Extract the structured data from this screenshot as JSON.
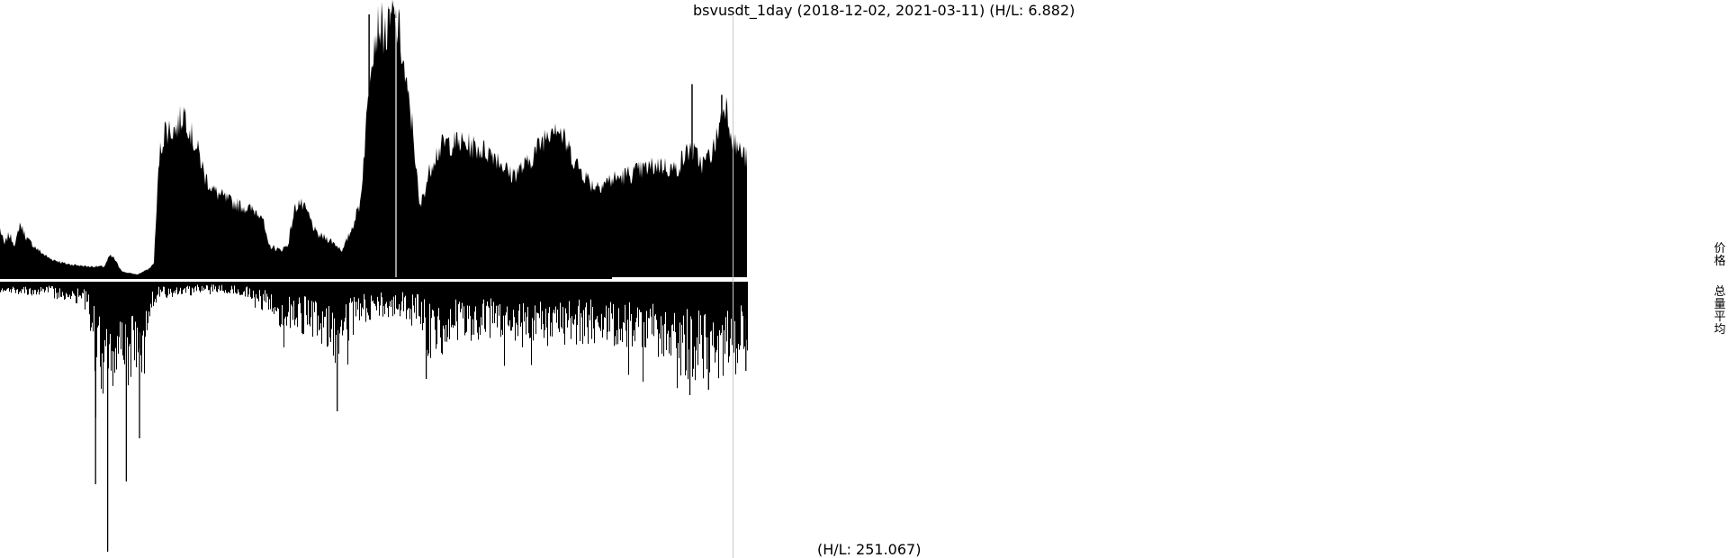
{
  "chart_data": {
    "type": "bar",
    "title": "bsvusdt_1day (2018-12-02, 2021-03-11) (H/L: 6.882)",
    "price_panel": {
      "start": "2018-12-02",
      "end": "2021-03-11",
      "hl_ratio": 6.882,
      "series_name": "价格",
      "profile": [
        [
          0,
          0.18
        ],
        [
          4,
          0.12
        ],
        [
          8,
          0.16
        ],
        [
          14,
          0.12
        ],
        [
          18,
          0.2
        ],
        [
          25,
          0.14
        ],
        [
          35,
          0.1
        ],
        [
          45,
          0.07
        ],
        [
          60,
          0.05
        ],
        [
          80,
          0.04
        ],
        [
          95,
          0.04
        ],
        [
          100,
          0.08
        ],
        [
          104,
          0.07
        ],
        [
          108,
          0.04
        ],
        [
          112,
          0.02
        ],
        [
          125,
          0.01
        ],
        [
          135,
          0.03
        ],
        [
          140,
          0.05
        ],
        [
          145,
          0.45
        ],
        [
          150,
          0.55
        ],
        [
          160,
          0.55
        ],
        [
          168,
          0.62
        ],
        [
          175,
          0.52
        ],
        [
          182,
          0.45
        ],
        [
          186,
          0.38
        ],
        [
          195,
          0.32
        ],
        [
          210,
          0.28
        ],
        [
          230,
          0.25
        ],
        [
          238,
          0.24
        ],
        [
          244,
          0.12
        ],
        [
          255,
          0.1
        ],
        [
          262,
          0.12
        ],
        [
          268,
          0.25
        ],
        [
          272,
          0.28
        ],
        [
          280,
          0.24
        ],
        [
          288,
          0.16
        ],
        [
          300,
          0.14
        ],
        [
          312,
          0.1
        ],
        [
          320,
          0.18
        ],
        [
          328,
          0.28
        ],
        [
          334,
          0.6
        ],
        [
          338,
          0.85
        ],
        [
          345,
          0.95
        ],
        [
          352,
          0.9
        ],
        [
          358,
          0.98
        ],
        [
          364,
          0.9
        ],
        [
          370,
          0.7
        ],
        [
          376,
          0.55
        ],
        [
          382,
          0.25
        ],
        [
          386,
          0.32
        ],
        [
          395,
          0.45
        ],
        [
          405,
          0.5
        ],
        [
          420,
          0.5
        ],
        [
          435,
          0.48
        ],
        [
          450,
          0.46
        ],
        [
          465,
          0.38
        ],
        [
          480,
          0.42
        ],
        [
          495,
          0.52
        ],
        [
          505,
          0.58
        ],
        [
          515,
          0.5
        ],
        [
          525,
          0.42
        ],
        [
          540,
          0.34
        ],
        [
          555,
          0.36
        ],
        [
          570,
          0.38
        ],
        [
          585,
          0.4
        ],
        [
          600,
          0.42
        ],
        [
          615,
          0.4
        ],
        [
          628,
          0.48
        ],
        [
          640,
          0.42
        ],
        [
          650,
          0.48
        ],
        [
          660,
          0.66
        ],
        [
          668,
          0.5
        ],
        [
          680,
          0.44
        ]
      ],
      "spikes": [
        [
          336,
          0.98
        ],
        [
          354,
          1.0
        ],
        [
          359,
          0.98
        ],
        [
          630,
          0.72
        ],
        [
          657,
          0.68
        ]
      ]
    },
    "volume_panel": {
      "hl_label": "(H/L: 251.067)",
      "hl_ratio": 251.067,
      "series_name": "总量平均",
      "profile": [
        [
          0,
          0.03
        ],
        [
          40,
          0.04
        ],
        [
          70,
          0.06
        ],
        [
          80,
          0.09
        ],
        [
          88,
          0.3
        ],
        [
          95,
          0.4
        ],
        [
          100,
          0.35
        ],
        [
          108,
          0.25
        ],
        [
          115,
          0.3
        ],
        [
          120,
          0.28
        ],
        [
          128,
          0.3
        ],
        [
          135,
          0.1
        ],
        [
          145,
          0.05
        ],
        [
          170,
          0.03
        ],
        [
          200,
          0.03
        ],
        [
          230,
          0.05
        ],
        [
          250,
          0.12
        ],
        [
          270,
          0.14
        ],
        [
          290,
          0.16
        ],
        [
          305,
          0.24
        ],
        [
          315,
          0.18
        ],
        [
          330,
          0.12
        ],
        [
          360,
          0.1
        ],
        [
          380,
          0.13
        ],
        [
          390,
          0.22
        ],
        [
          420,
          0.18
        ],
        [
          450,
          0.16
        ],
        [
          480,
          0.2
        ],
        [
          510,
          0.18
        ],
        [
          540,
          0.17
        ],
        [
          570,
          0.18
        ],
        [
          590,
          0.2
        ],
        [
          620,
          0.26
        ],
        [
          640,
          0.28
        ],
        [
          660,
          0.26
        ],
        [
          680,
          0.22
        ]
      ],
      "spikes": [
        [
          87,
          0.75
        ],
        [
          98,
          1.0
        ],
        [
          115,
          0.74
        ],
        [
          127,
          0.58
        ],
        [
          307,
          0.48
        ],
        [
          388,
          0.36
        ],
        [
          628,
          0.42
        ],
        [
          645,
          0.4
        ],
        [
          679,
          0.33
        ]
      ]
    }
  }
}
